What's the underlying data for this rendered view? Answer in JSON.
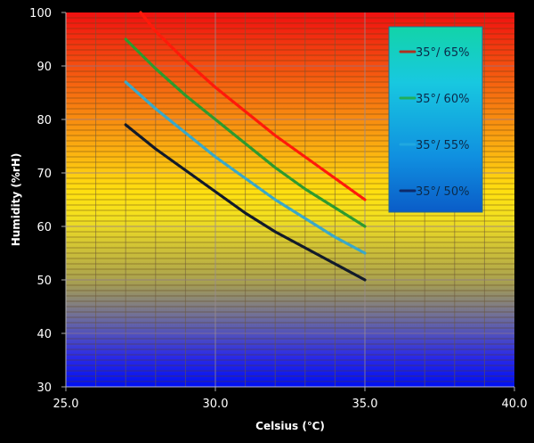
{
  "chart_data": {
    "type": "line",
    "title": "",
    "xlabel": "Celsius (℃)",
    "ylabel": "Humidity (%rH)",
    "xlim": [
      25.0,
      40.0
    ],
    "ylim": [
      30,
      100
    ],
    "x_ticks": [
      "25.0",
      "30.0",
      "35.0",
      "40.0"
    ],
    "x_tick_values": [
      25,
      30,
      35,
      40
    ],
    "y_ticks": [
      "30",
      "40",
      "50",
      "60",
      "70",
      "80",
      "90",
      "100"
    ],
    "y_tick_values": [
      30,
      40,
      50,
      60,
      70,
      80,
      90,
      100
    ],
    "x_minor_grid_step": 1,
    "y_minor_grid_step": 1,
    "grid": true,
    "background": "vertical gradient red (top) → orange → yellow → grey → blue (bottom)",
    "legend_position": "top-right",
    "series": [
      {
        "name": "35°/ 65%",
        "color": "#ff1a0a",
        "legend_color": "#b03020",
        "x": [
          27.5,
          28,
          29,
          30,
          31,
          32,
          33,
          34,
          35
        ],
        "y": [
          100,
          96.5,
          91,
          86,
          81.5,
          77,
          73,
          69,
          65
        ]
      },
      {
        "name": "35°/ 60%",
        "color": "#2e9a2e",
        "legend_color": "#1fae5a",
        "x": [
          27,
          28,
          29,
          30,
          31,
          32,
          33,
          34,
          35
        ],
        "y": [
          95,
          89.5,
          84.5,
          80,
          75.5,
          71,
          67,
          63.5,
          60
        ]
      },
      {
        "name": "35°/ 55%",
        "color": "#3aa8c8",
        "legend_color": "#20a8e0",
        "x": [
          27,
          28,
          29,
          30,
          31,
          32,
          33,
          34,
          35
        ],
        "y": [
          87,
          82,
          77.5,
          73,
          69,
          65,
          61.5,
          58,
          55
        ]
      },
      {
        "name": "35°/ 50%",
        "color": "#111a2a",
        "legend_color": "#0d2a6a",
        "x": [
          27,
          28,
          29,
          30,
          31,
          32,
          33,
          34,
          35
        ],
        "y": [
          79,
          74.5,
          70.5,
          66.5,
          62.5,
          59,
          56,
          53,
          50
        ]
      }
    ]
  }
}
